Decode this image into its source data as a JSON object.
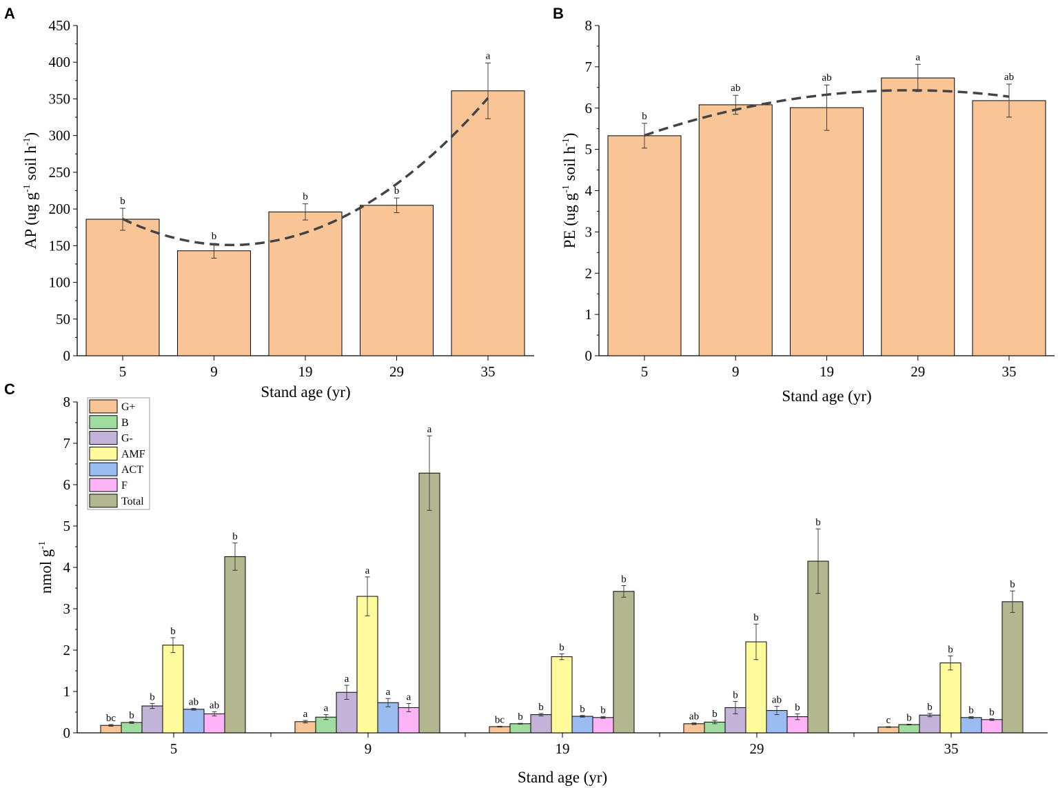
{
  "chart_data": [
    {
      "panel": "A",
      "type": "bar",
      "categories": [
        "5",
        "9",
        "19",
        "29",
        "35"
      ],
      "values": [
        186,
        143,
        196,
        205,
        361
      ],
      "errors": [
        15,
        10,
        11,
        10,
        38
      ],
      "letters": [
        "b",
        "b",
        "b",
        "b",
        "a"
      ],
      "xlabel": "Stand age (yr)",
      "ylabel": "AP (ug g-1 soil h-1)",
      "ylabel_parts": [
        "AP (ug g",
        "-1",
        " soil h",
        "-1",
        ")"
      ],
      "ylim": [
        0,
        450
      ],
      "yticks": [
        "0",
        "50",
        "100",
        "150",
        "200",
        "250",
        "300",
        "350",
        "400",
        "450"
      ],
      "trend": "quadratic dashed",
      "bar_color": "#f9c596"
    },
    {
      "panel": "B",
      "type": "bar",
      "categories": [
        "5",
        "9",
        "19",
        "29",
        "35"
      ],
      "values": [
        5.33,
        6.08,
        6.01,
        6.73,
        6.18
      ],
      "errors": [
        0.3,
        0.23,
        0.55,
        0.33,
        0.4
      ],
      "letters": [
        "b",
        "ab",
        "ab",
        "a",
        "ab"
      ],
      "xlabel": "Stand age (yr)",
      "ylabel": "PE (ug g-1 soil h-1)",
      "ylabel_parts": [
        "PE (ug g",
        "-1",
        " soil h",
        "-1",
        ")"
      ],
      "ylim": [
        0,
        8
      ],
      "yticks": [
        "0",
        "1",
        "2",
        "3",
        "4",
        "5",
        "6",
        "7",
        "8"
      ],
      "trend": "quadratic dashed",
      "bar_color": "#f9c596"
    },
    {
      "panel": "C",
      "type": "bar",
      "categories": [
        "5",
        "9",
        "19",
        "29",
        "35"
      ],
      "xlabel": "Stand age (yr)",
      "ylabel": "nmol g-1",
      "ylabel_parts": [
        "nmol g",
        "-1"
      ],
      "ylim": [
        0,
        8
      ],
      "yticks": [
        "0",
        "1",
        "2",
        "3",
        "4",
        "5",
        "6",
        "7",
        "8"
      ],
      "legend_position": "top-left",
      "series": [
        {
          "name": "G+",
          "color": "#f9c596",
          "values": [
            0.18,
            0.27,
            0.15,
            0.22,
            0.14
          ],
          "errors": [
            0.02,
            0.03,
            0.01,
            0.02,
            0.01
          ],
          "letters": [
            "bc",
            "a",
            "bc",
            "ab",
            "c"
          ]
        },
        {
          "name": "B",
          "color": "#a0dca0",
          "values": [
            0.25,
            0.38,
            0.22,
            0.26,
            0.2
          ],
          "errors": [
            0.02,
            0.06,
            0.01,
            0.04,
            0.01
          ],
          "letters": [
            "b",
            "a",
            "b",
            "b",
            "b"
          ]
        },
        {
          "name": "G-",
          "color": "#c3b3d8",
          "values": [
            0.65,
            0.98,
            0.44,
            0.61,
            0.43
          ],
          "errors": [
            0.06,
            0.17,
            0.03,
            0.15,
            0.04
          ],
          "letters": [
            "b",
            "a",
            "b",
            "b",
            "b"
          ]
        },
        {
          "name": "AMF",
          "color": "#fffb9c",
          "values": [
            2.12,
            3.3,
            1.84,
            2.2,
            1.69
          ],
          "errors": [
            0.18,
            0.47,
            0.07,
            0.43,
            0.17
          ],
          "letters": [
            "b",
            "a",
            "b",
            "b",
            "b"
          ]
        },
        {
          "name": "ACT",
          "color": "#9bbcf0",
          "values": [
            0.57,
            0.73,
            0.4,
            0.54,
            0.37
          ],
          "errors": [
            0.02,
            0.1,
            0.02,
            0.1,
            0.02
          ],
          "letters": [
            "ab",
            "a",
            "b",
            "ab",
            "b"
          ]
        },
        {
          "name": "F",
          "color": "#fdb4f6",
          "values": [
            0.46,
            0.61,
            0.37,
            0.39,
            0.32
          ],
          "errors": [
            0.05,
            0.1,
            0.02,
            0.07,
            0.02
          ],
          "letters": [
            "ab",
            "a",
            "b",
            "b",
            "b"
          ]
        },
        {
          "name": "Total",
          "color": "#b3b78f",
          "values": [
            4.26,
            6.28,
            3.42,
            4.15,
            3.17
          ],
          "errors": [
            0.33,
            0.9,
            0.14,
            0.78,
            0.26
          ],
          "letters": [
            "b",
            "a",
            "b",
            "b",
            "b"
          ]
        }
      ]
    }
  ]
}
